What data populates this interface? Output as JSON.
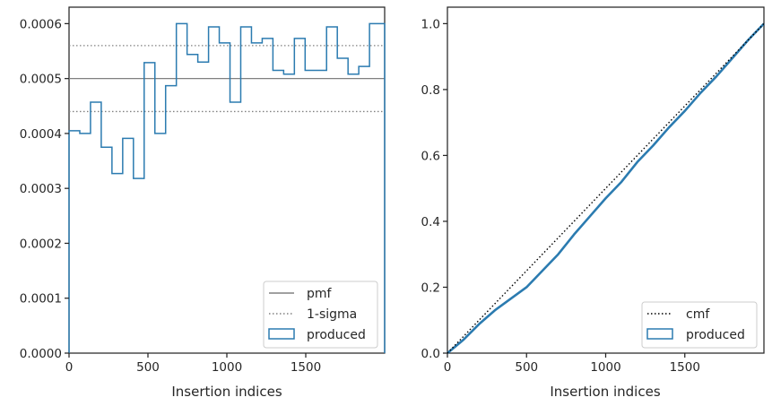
{
  "colors": {
    "produced": "#2b7bb0",
    "pmf": "#808080",
    "sigma": "#808080",
    "cmf": "#000000",
    "axes": "#262626"
  },
  "chart_data": [
    {
      "type": "step",
      "title": "",
      "xlabel": "Insertion indices",
      "ylabel": "",
      "xlim": [
        0,
        2000
      ],
      "ylim": [
        0,
        0.00063
      ],
      "xticks": [
        0,
        500,
        1000,
        1500
      ],
      "yticks": [
        0.0,
        0.0001,
        0.0002,
        0.0003,
        0.0004,
        0.0005,
        0.0006
      ],
      "ytick_labels": [
        "0.0000",
        "0.0001",
        "0.0002",
        "0.0003",
        "0.0004",
        "0.0005",
        "0.0006"
      ],
      "grid": false,
      "legend_position": "lower-right",
      "bin_edges": [
        0,
        68,
        136,
        204,
        272,
        340,
        408,
        476,
        544,
        612,
        680,
        748,
        816,
        884,
        952,
        1020,
        1088,
        1156,
        1224,
        1292,
        1360,
        1428,
        1496,
        1564,
        1632,
        1700,
        1768,
        1836,
        1904,
        1972,
        2000
      ],
      "series": [
        {
          "name": "pmf",
          "kind": "hline",
          "value": 0.0005
        },
        {
          "name": "1-sigma",
          "kind": "hlines",
          "values": [
            0.00044,
            0.00056
          ]
        },
        {
          "name": "produced",
          "kind": "histogram-step",
          "values": [
            0.000405,
            0.0004,
            0.000457,
            0.000375,
            0.000327,
            0.000391,
            0.000318,
            0.000529,
            0.0004,
            0.000487,
            0.0006,
            0.000544,
            0.00053,
            0.000594,
            0.000565,
            0.000457,
            0.000594,
            0.000565,
            0.000573,
            0.000515,
            0.000508,
            0.000573,
            0.000515,
            0.000515,
            0.000594,
            0.000537,
            0.000508,
            0.000522,
            0.0006,
            0.0006
          ]
        }
      ]
    },
    {
      "type": "line",
      "title": "",
      "xlabel": "Insertion indices",
      "ylabel": "",
      "xlim": [
        0,
        2000
      ],
      "ylim": [
        0,
        1.05
      ],
      "xticks": [
        0,
        500,
        1000,
        1500
      ],
      "yticks": [
        0.0,
        0.2,
        0.4,
        0.6,
        0.8,
        1.0
      ],
      "ytick_labels": [
        "0.0",
        "0.2",
        "0.4",
        "0.6",
        "0.8",
        "1.0"
      ],
      "grid": false,
      "legend_position": "lower-right",
      "series": [
        {
          "name": "cmf",
          "style": "dotted",
          "x": [
            0,
            2000
          ],
          "y": [
            0.0,
            1.0
          ]
        },
        {
          "name": "produced",
          "style": "solid",
          "x": [
            0,
            100,
            200,
            300,
            400,
            500,
            600,
            700,
            800,
            900,
            1000,
            1100,
            1200,
            1300,
            1400,
            1500,
            1600,
            1700,
            1800,
            1900,
            2000
          ],
          "y": [
            0.0,
            0.04,
            0.088,
            0.13,
            0.165,
            0.2,
            0.25,
            0.3,
            0.36,
            0.415,
            0.47,
            0.52,
            0.58,
            0.63,
            0.685,
            0.735,
            0.79,
            0.84,
            0.895,
            0.95,
            1.0
          ]
        }
      ]
    }
  ]
}
